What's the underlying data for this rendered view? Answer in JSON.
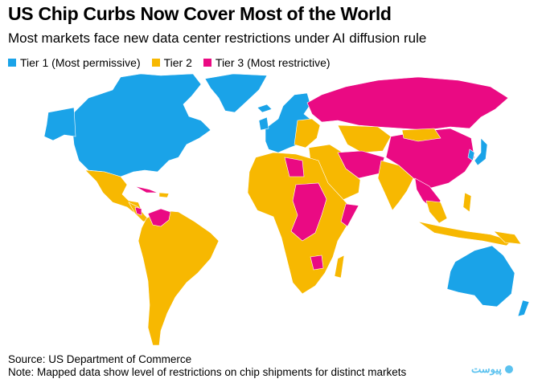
{
  "title": "US Chip Curbs Now Cover Most of the World",
  "subtitle": "Most markets face new data center restrictions under AI diffusion rule",
  "legend": [
    {
      "label": "Tier 1 (Most permissive)",
      "color": "#1aa3e8"
    },
    {
      "label": "Tier 2",
      "color": "#f7b801"
    },
    {
      "label": "Tier 3 (Most restrictive)",
      "color": "#ea0a83"
    }
  ],
  "source": "Source: US Department of Commerce",
  "note": "Note: Mapped data show level of restrictions on chip shipments for distinct markets",
  "logo_text": "پیوست"
}
